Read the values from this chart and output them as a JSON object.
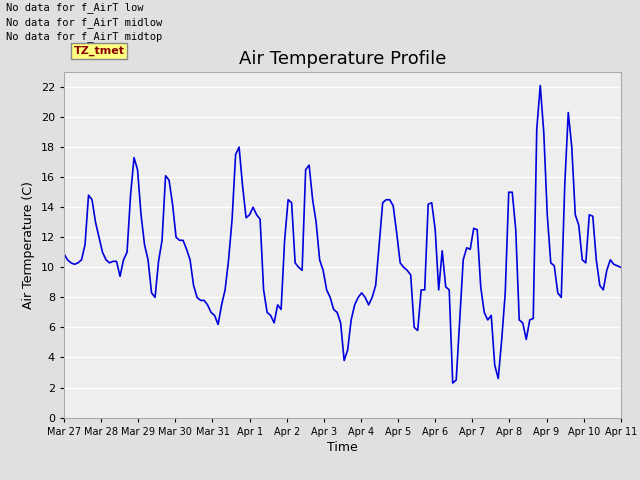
{
  "title": "Air Temperature Profile",
  "xlabel": "Time",
  "ylabel": "Air Termperature (C)",
  "no_data_texts": [
    "No data for f_AirT low",
    "No data for f_AirT midlow",
    "No data for f_AirT midtop"
  ],
  "tz_tmet_label": "TZ_tmet",
  "ylim": [
    0,
    23
  ],
  "yticks": [
    0,
    2,
    4,
    6,
    8,
    10,
    12,
    14,
    16,
    18,
    20,
    22
  ],
  "x_tick_labels": [
    "Mar 27",
    "Mar 28",
    "Mar 29",
    "Mar 30",
    "Mar 31",
    "Apr 1",
    "Apr 2",
    "Apr 3",
    "Apr 4",
    "Apr 5",
    "Apr 6",
    "Apr 7",
    "Apr 8",
    "Apr 9",
    "Apr 10",
    "Apr 11"
  ],
  "background_color": "#e0e0e0",
  "plot_bg_color": "#eeeeee",
  "line_color": "#0000dd",
  "line_width": 1.2,
  "title_fontsize": 13,
  "axis_label_fontsize": 9,
  "tick_fontsize": 8,
  "num_days": 15,
  "y_values": [
    10.9,
    10.5,
    10.3,
    10.2,
    10.3,
    10.5,
    11.5,
    14.8,
    14.5,
    13.0,
    12.0,
    11.0,
    10.5,
    10.3,
    10.4,
    10.4,
    9.4,
    10.5,
    11.0,
    14.8,
    17.3,
    16.5,
    13.5,
    11.5,
    10.5,
    8.3,
    8.0,
    10.4,
    11.8,
    16.1,
    15.8,
    14.2,
    12.0,
    11.8,
    11.8,
    11.2,
    10.5,
    8.8,
    8.0,
    7.8,
    7.8,
    7.5,
    7.0,
    6.8,
    6.2,
    7.5,
    8.5,
    10.5,
    13.2,
    17.5,
    18.0,
    15.4,
    13.3,
    13.5,
    14.0,
    13.5,
    13.2,
    8.5,
    7.0,
    6.8,
    6.3,
    7.5,
    7.2,
    11.8,
    14.5,
    14.3,
    10.3,
    10.0,
    9.8,
    16.5,
    16.8,
    14.5,
    13.0,
    10.5,
    9.8,
    8.5,
    8.0,
    7.2,
    7.0,
    6.3,
    3.8,
    4.5,
    6.5,
    7.5,
    8.0,
    8.3,
    8.0,
    7.5,
    8.0,
    8.8,
    11.5,
    14.3,
    14.5,
    14.5,
    14.1,
    12.3,
    10.3,
    10.0,
    9.8,
    9.5,
    6.0,
    5.8,
    8.5,
    8.5,
    14.2,
    14.3,
    12.5,
    8.5,
    11.1,
    8.7,
    8.5,
    2.3,
    2.5,
    6.5,
    10.5,
    11.3,
    11.2,
    12.6,
    12.5,
    8.7,
    7.0,
    6.5,
    6.8,
    3.5,
    2.6,
    5.2,
    8.3,
    15.0,
    15.0,
    12.5,
    6.5,
    6.3,
    5.2,
    6.5,
    6.6,
    19.2,
    22.1,
    19.0,
    13.5,
    10.3,
    10.1,
    8.3,
    8.0,
    15.5,
    20.3,
    18.0,
    13.5,
    12.8,
    10.5,
    10.3,
    13.5,
    13.4,
    10.5,
    8.8,
    8.5,
    9.8,
    10.5,
    10.2,
    10.1,
    10.0
  ]
}
